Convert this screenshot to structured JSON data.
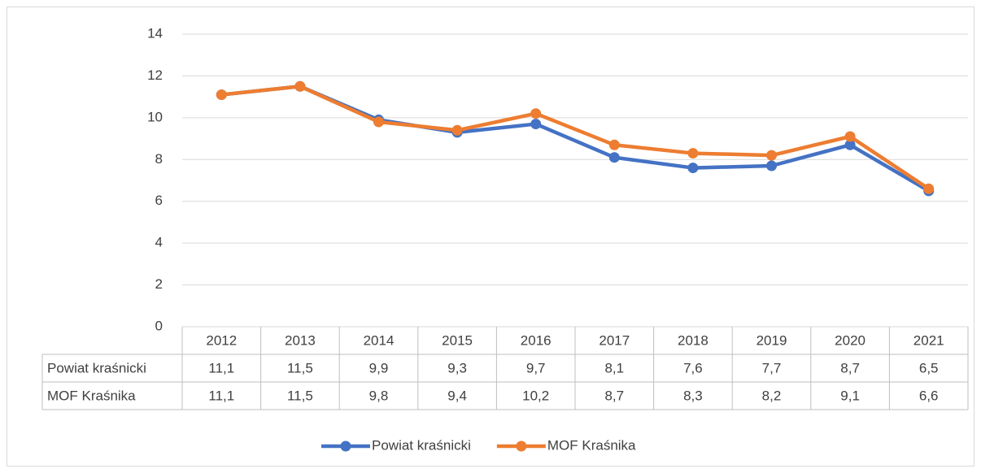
{
  "chart_data": {
    "type": "line",
    "categories": [
      "2012",
      "2013",
      "2014",
      "2015",
      "2016",
      "2017",
      "2018",
      "2019",
      "2020",
      "2021"
    ],
    "series": [
      {
        "name": "Powiat kraśnicki",
        "color": "#4472c4",
        "values": [
          11.1,
          11.5,
          9.9,
          9.3,
          9.7,
          8.1,
          7.6,
          7.7,
          8.7,
          6.5
        ],
        "value_labels": [
          "11,1",
          "11,5",
          "9,9",
          "9,3",
          "9,7",
          "8,1",
          "7,6",
          "7,7",
          "8,7",
          "6,5"
        ]
      },
      {
        "name": "MOF Kraśnika",
        "color": "#ed7d31",
        "values": [
          11.1,
          11.5,
          9.8,
          9.4,
          10.2,
          8.7,
          8.3,
          8.2,
          9.1,
          6.6
        ],
        "value_labels": [
          "11,1",
          "11,5",
          "9,8",
          "9,4",
          "10,2",
          "8,7",
          "8,3",
          "8,2",
          "9,1",
          "6,6"
        ]
      }
    ],
    "ylim": [
      0,
      14
    ],
    "yticks": [
      0,
      2,
      4,
      6,
      8,
      10,
      12,
      14
    ],
    "grid": true,
    "legend": "bottom"
  }
}
